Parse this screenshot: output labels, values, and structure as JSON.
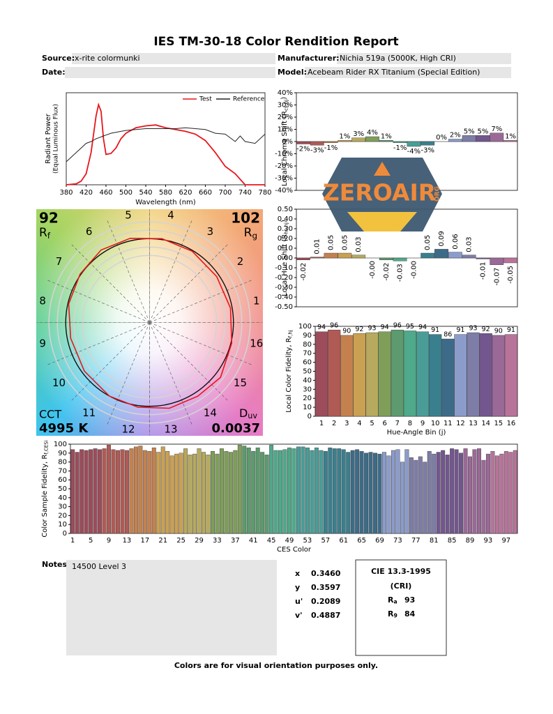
{
  "title": "IES TM-30-18 Color Rendition Report",
  "header": {
    "source": {
      "label": "Source:",
      "value": "x-rite colormunki"
    },
    "manufacturer": {
      "label": "Manufacturer:",
      "value": "Nichia 519a (5000K, High CRI)"
    },
    "date": {
      "label": "Date:"
    },
    "model": {
      "label": "Model:",
      "value": "Acebeam Rider RX Titanium (Special Edition)"
    }
  },
  "chart_data": [
    {
      "type": "line",
      "x_label": "Wavelength (nm)",
      "y_label": [
        "Radiant Power",
        "(Equal Luminous Flux)"
      ],
      "legend": "upper right",
      "x": [
        380,
        400,
        410,
        420,
        430,
        440,
        445,
        450,
        455,
        460,
        470,
        480,
        490,
        500,
        520,
        540,
        560,
        580,
        600,
        620,
        640,
        660,
        680,
        700,
        720,
        730,
        740,
        760,
        780
      ],
      "series": [
        {
          "name": "Test",
          "color": "#e8141c",
          "values": [
            0,
            0.01,
            0.04,
            0.12,
            0.35,
            0.75,
            0.87,
            0.8,
            0.5,
            0.33,
            0.34,
            0.4,
            0.5,
            0.56,
            0.62,
            0.64,
            0.65,
            0.62,
            0.6,
            0.58,
            0.55,
            0.48,
            0.35,
            0.2,
            0.12,
            0.06,
            0,
            0,
            0
          ]
        },
        {
          "name": "Reference",
          "color": "#222222",
          "values": [
            0.25,
            0.35,
            0.4,
            0.45,
            0.47,
            0.5,
            0.51,
            0.52,
            0.53,
            0.54,
            0.56,
            0.57,
            0.58,
            0.59,
            0.6,
            0.61,
            0.61,
            0.61,
            0.61,
            0.62,
            0.61,
            0.6,
            0.56,
            0.55,
            0.47,
            0.53,
            0.47,
            0.45,
            0.55
          ]
        }
      ],
      "xlim": [
        380,
        780
      ],
      "xticks": [
        380,
        420,
        460,
        500,
        540,
        580,
        620,
        660,
        700,
        740,
        780
      ],
      "ylim": [
        0,
        1
      ]
    },
    {
      "type": "bar",
      "y_label": {
        "text": "Local Chroma Shift (R",
        "sub": "cs,hj",
        "end": ")"
      },
      "values": [
        -2,
        -3,
        -1,
        1,
        3,
        4,
        1,
        -1,
        -4,
        -3,
        0,
        2,
        5,
        5,
        7,
        1
      ],
      "value_labels": [
        "-2%",
        "-3%",
        "-1%",
        "1%",
        "3%",
        "4%",
        "1%",
        "-1%",
        "-4%",
        "-3%",
        "0%",
        "2%",
        "5%",
        "5%",
        "7%",
        "1%"
      ],
      "colors": [
        "#9c4c5a",
        "#b05a55",
        "#c4814e",
        "#caa052",
        "#b7a95e",
        "#7f9e5a",
        "#5d9a6d",
        "#4fa98b",
        "#4a9d96",
        "#3a7f8e",
        "#3d6b87",
        "#8b9ccb",
        "#7e7da7",
        "#73568e",
        "#9a6997",
        "#b8739a"
      ],
      "ylim": [
        -40,
        40
      ],
      "yticks": [
        {
          "value": -40,
          "label": "-40%"
        },
        {
          "value": -30,
          "label": "-30%"
        },
        {
          "value": -20,
          "label": "-20%"
        },
        {
          "value": -10,
          "label": "-10%"
        },
        {
          "value": 0,
          "label": "0%"
        },
        {
          "value": 10,
          "label": "10%"
        },
        {
          "value": 20,
          "label": "20%"
        },
        {
          "value": 30,
          "label": "30%"
        },
        {
          "value": 40,
          "label": "40%"
        }
      ]
    },
    {
      "type": "bar",
      "y_label": {
        "text": "Local Hue Shift (R",
        "sub": "hs,hj",
        "end": ")"
      },
      "values": [
        -0.02,
        0.01,
        0.05,
        0.05,
        0.03,
        0,
        -0.02,
        -0.03,
        0,
        0.05,
        0.09,
        0.06,
        0.03,
        -0.01,
        -0.07,
        -0.05
      ],
      "value_labels": [
        "-0.02",
        "0.01",
        "0.05",
        "0.05",
        "0.03",
        "-0.00",
        "-0.02",
        "-0.03",
        "-0.00",
        "0.05",
        "0.09",
        "0.06",
        "0.03",
        "-0.01",
        "-0.07",
        "-0.05"
      ],
      "colors": [
        "#9c4c5a",
        "#b05a55",
        "#c4814e",
        "#caa052",
        "#b7a95e",
        "#7f9e5a",
        "#5d9a6d",
        "#4fa98b",
        "#4a9d96",
        "#3a7f8e",
        "#3d6b87",
        "#8b9ccb",
        "#7e7da7",
        "#73568e",
        "#9a6997",
        "#b8739a"
      ],
      "ylim": [
        -0.5,
        0.5
      ],
      "yticks": [
        {
          "value": -0.5,
          "label": "-0.50"
        },
        {
          "value": -0.4,
          "label": "-0.40"
        },
        {
          "value": -0.3,
          "label": "-0.30"
        },
        {
          "value": -0.2,
          "label": "-0.20"
        },
        {
          "value": -0.1,
          "label": "-0.10"
        },
        {
          "value": 0,
          "label": "0.00"
        },
        {
          "value": 0.1,
          "label": "0.10"
        },
        {
          "value": 0.2,
          "label": "0.20"
        },
        {
          "value": 0.3,
          "label": "0.30"
        },
        {
          "value": 0.4,
          "label": "0.40"
        },
        {
          "value": 0.5,
          "label": "0.50"
        }
      ]
    },
    {
      "type": "bar",
      "x_label": "Hue-Angle Bin (j)",
      "y_label": {
        "text": "Local Color Fidelity, R",
        "sub": "f,hj"
      },
      "categories": [
        1,
        2,
        3,
        4,
        5,
        6,
        7,
        8,
        9,
        10,
        11,
        12,
        13,
        14,
        15,
        16
      ],
      "values": [
        94,
        96,
        90,
        92,
        93,
        94,
        96,
        95,
        94,
        91,
        86,
        91,
        93,
        92,
        90,
        91
      ],
      "colors": [
        "#9c4c5a",
        "#b05a55",
        "#c4814e",
        "#caa052",
        "#b7a95e",
        "#7f9e5a",
        "#5d9a6d",
        "#4fa98b",
        "#4a9d96",
        "#3a7f8e",
        "#3d6b87",
        "#8b9ccb",
        "#7e7da7",
        "#73568e",
        "#9a6997",
        "#b8739a"
      ],
      "ylim": [
        0,
        100
      ],
      "yticks": [
        0,
        10,
        20,
        30,
        40,
        50,
        60,
        70,
        80,
        90,
        100
      ]
    },
    {
      "type": "vector",
      "categories": [
        1,
        2,
        3,
        4,
        5,
        6,
        7,
        8,
        9,
        10,
        11,
        12,
        13,
        14,
        15,
        16
      ],
      "metrics": {
        "rf": {
          "value": 92,
          "symbol": "R",
          "sub": "f"
        },
        "rg": {
          "value": 102,
          "symbol": "R",
          "sub": "g"
        },
        "cct": {
          "label": "CCT",
          "value": "4995 K"
        },
        "duv": {
          "symbol": "D",
          "sub": "uv",
          "value": "0.0037"
        }
      }
    },
    {
      "type": "bar",
      "x_label": "CES Color",
      "y_label": {
        "text": "Color Sample Fidelity, R",
        "sub": "f,CESi"
      },
      "categories": [
        1,
        null,
        null,
        null,
        5,
        null,
        null,
        null,
        9,
        null,
        null,
        null,
        13,
        null,
        null,
        null,
        17,
        null,
        null,
        null,
        21,
        null,
        null,
        null,
        25,
        null,
        null,
        null,
        29,
        null,
        null,
        null,
        33,
        null,
        null,
        null,
        37,
        null,
        null,
        null,
        41,
        null,
        null,
        null,
        45,
        null,
        null,
        null,
        49,
        null,
        null,
        null,
        53,
        null,
        null,
        null,
        57,
        null,
        null,
        null,
        61,
        null,
        null,
        null,
        65,
        null,
        null,
        null,
        69,
        null,
        null,
        null,
        73,
        null,
        null,
        null,
        77,
        null,
        null,
        null,
        81,
        null,
        null,
        null,
        85,
        null,
        null,
        null,
        89,
        null,
        null,
        null,
        93,
        null,
        null,
        null,
        97,
        null,
        null
      ],
      "values": [
        94,
        91,
        94,
        93,
        94,
        95,
        94,
        95,
        99,
        94,
        93,
        94,
        93,
        95,
        97,
        98,
        93,
        92,
        96,
        91,
        97,
        92,
        87,
        89,
        90,
        95,
        88,
        89,
        95,
        91,
        88,
        92,
        89,
        95,
        92,
        91,
        93,
        99,
        98,
        96,
        92,
        96,
        91,
        88,
        99,
        93,
        93,
        94,
        96,
        95,
        97,
        97,
        96,
        93,
        96,
        93,
        92,
        96,
        95,
        95,
        94,
        91,
        93,
        94,
        92,
        90,
        91,
        90,
        89,
        91,
        87,
        93,
        94,
        80,
        94,
        85,
        82,
        86,
        80,
        92,
        89,
        91,
        93,
        88,
        95,
        94,
        90,
        95,
        86,
        94,
        95,
        82,
        89,
        92,
        87,
        89,
        92,
        91,
        93
      ],
      "colors": [
        "#9c4c5a",
        "#b05a55",
        "#c4814e",
        "#caa052",
        "#b7a95e",
        "#7f9e5a",
        "#5d9a6d",
        "#4fa98b",
        "#4a9d96",
        "#3a7f8e",
        "#3d6b87",
        "#8b9ccb",
        "#7e7da7",
        "#73568e",
        "#9a6997",
        "#b8739a"
      ],
      "ylim": [
        0,
        100
      ],
      "yticks": [
        0,
        10,
        20,
        30,
        40,
        50,
        60,
        70,
        80,
        90,
        100
      ]
    }
  ],
  "notes": {
    "label": "Notes:",
    "text": "14500 Level 3"
  },
  "chromaticity": [
    {
      "label": "x",
      "value": "0.3460"
    },
    {
      "label": "y",
      "value": "0.3597"
    },
    {
      "label": "u'",
      "value": "0.2089"
    },
    {
      "label": "v'",
      "value": "0.4887"
    }
  ],
  "cri": {
    "title": "CIE 13.3-1995",
    "subtitle": "(CRI)",
    "ra": {
      "symbol": "R",
      "sub": "a",
      "value": 93
    },
    "r9": {
      "symbol": "R",
      "sub": "9",
      "value": 84
    }
  },
  "watermark": {
    "text": "ZEROAIR",
    "suffix": "ORG"
  },
  "footer": "Colors are for visual orientation purposes only."
}
